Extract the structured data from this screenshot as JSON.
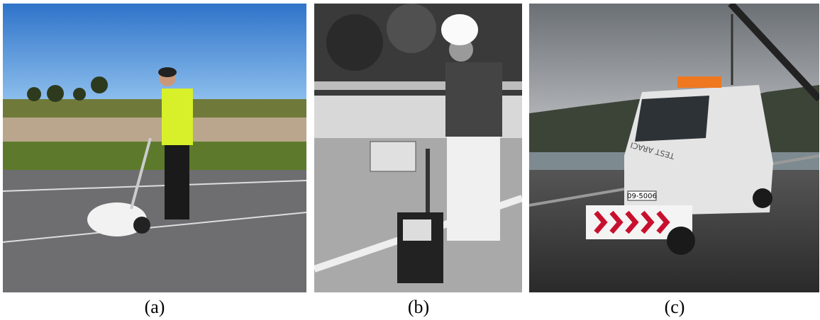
{
  "panels": [
    {
      "caption": "(a)"
    },
    {
      "caption": "(b)"
    },
    {
      "caption": "(c)",
      "vehicle_text": "TEST ARACI",
      "plate": "09-5006"
    }
  ]
}
